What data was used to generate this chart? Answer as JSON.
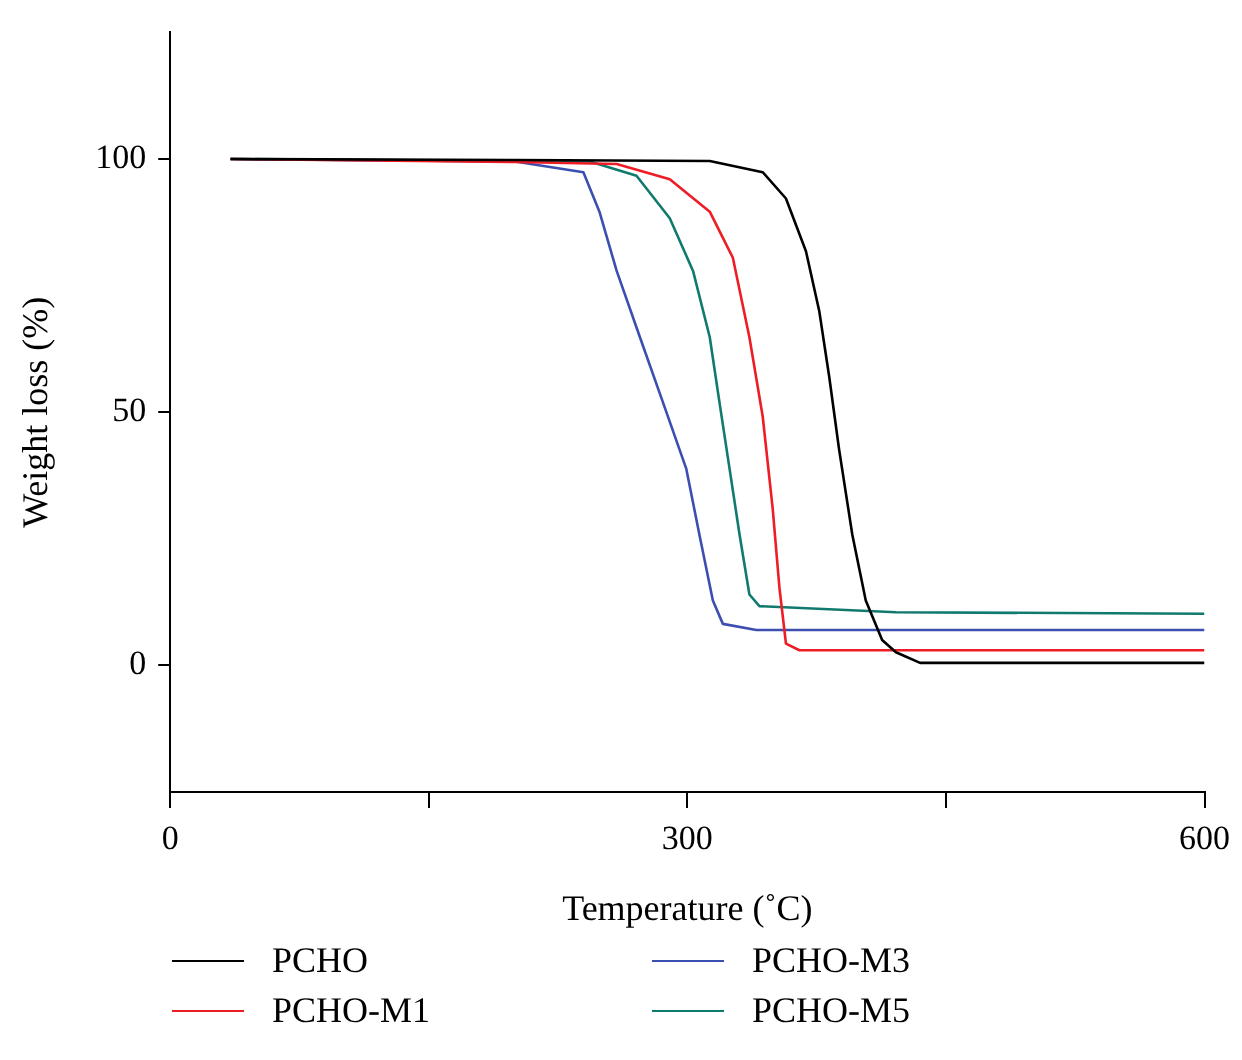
{
  "chart_data": {
    "type": "line",
    "xlabel": "Temperature (˚C)",
    "ylabel": "Weight loss (%)",
    "xlim": [
      0,
      600
    ],
    "xticks": [
      0,
      {
        "value": 150,
        "label": null
      },
      300,
      {
        "value": 450,
        "label": null
      },
      600
    ],
    "ylim": [
      -25,
      125
    ],
    "yticks": [
      0,
      50,
      100
    ],
    "grid": false,
    "legend": "bottom",
    "marker": "none",
    "line_style": "solid",
    "series": [
      {
        "name": "PCHO",
        "color": "#000000",
        "x": [
          35,
          200,
          313,
          343.7,
          357.2,
          368.8,
          376.5,
          382.3,
          388,
          395.7,
          403.5,
          413,
          421,
          435,
          600
        ],
        "values": [
          100,
          99.8,
          99.6,
          97.4,
          92.2,
          81.8,
          70,
          57,
          42.7,
          25.8,
          12.8,
          5,
          2.6,
          0.5,
          0.5
        ]
      },
      {
        "name": "PCHO-M1",
        "color": "#ee1c25",
        "x": [
          35,
          200,
          259,
          289.8,
          313,
          326.4,
          336,
          343.7,
          349.5,
          353.4,
          357.2,
          365,
          600
        ],
        "values": [
          100,
          99.4,
          99,
          96,
          89.6,
          80.5,
          64.8,
          49.2,
          31,
          15.4,
          4.3,
          3,
          3
        ]
      },
      {
        "name": "PCHO-M3",
        "color": "#3c4fb0",
        "x": [
          35,
          200,
          239.7,
          249,
          259,
          272.5,
          286,
          299.4,
          307,
          314.8,
          320.6,
          340,
          600
        ],
        "values": [
          100,
          99.5,
          97.4,
          89.6,
          77.9,
          64.8,
          51.8,
          38.8,
          25.8,
          12.8,
          8.2,
          7,
          7
        ]
      },
      {
        "name": "PCHO-M5",
        "color": "#117a6e",
        "x": [
          35,
          243.5,
          270.5,
          289.8,
          303.3,
          313,
          318.7,
          324.5,
          330.3,
          336,
          341.8,
          421,
          600
        ],
        "values": [
          100,
          99.5,
          96.7,
          88.3,
          77.9,
          64.8,
          51.8,
          38.8,
          25.8,
          14,
          11.7,
          10.5,
          10.2
        ]
      }
    ]
  }
}
